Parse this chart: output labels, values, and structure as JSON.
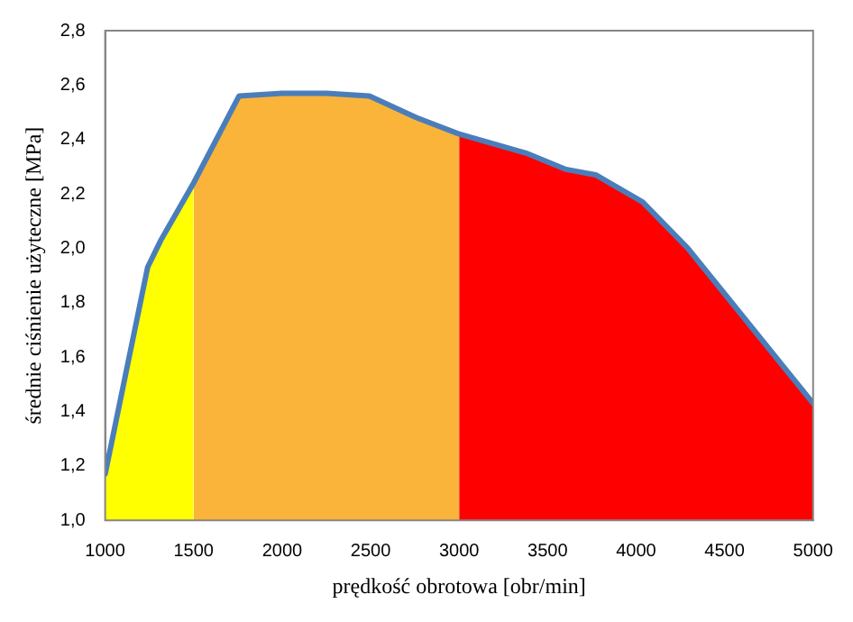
{
  "chart_data": {
    "type": "area",
    "xlabel": "prędkość obrotowa [obr/min]",
    "ylabel": "średnie ciśnienie użyteczne [MPa]",
    "xlim": [
      1000,
      5000
    ],
    "xticks": [
      1000,
      1500,
      2000,
      2500,
      3000,
      3500,
      4000,
      4500,
      5000
    ],
    "ylim": [
      1.0,
      2.8
    ],
    "yticks": [
      {
        "value": 1.0,
        "label": "1,0"
      },
      {
        "value": 1.2,
        "label": "1,2"
      },
      {
        "value": 1.4,
        "label": "1,4"
      },
      {
        "value": 1.6,
        "label": "1,6"
      },
      {
        "value": 1.8,
        "label": "1,8"
      },
      {
        "value": 2.0,
        "label": "2,0"
      },
      {
        "value": 2.2,
        "label": "2,2"
      },
      {
        "value": 2.4,
        "label": "2,4"
      },
      {
        "value": 2.6,
        "label": "2,6"
      },
      {
        "value": 2.8,
        "label": "2,8"
      }
    ],
    "grid": false,
    "legend": false,
    "marker": "none",
    "series": [
      {
        "color": "#ffff00",
        "x": [
          1000,
          1120,
          1240,
          1315,
          1500
        ],
        "values": [
          1.17,
          1.55,
          1.93,
          2.03,
          2.24
        ]
      },
      {
        "color": "#fbb43a",
        "x": [
          1500,
          1757,
          2000,
          2250,
          2493,
          2759,
          3000
        ],
        "values": [
          2.24,
          2.56,
          2.57,
          2.57,
          2.56,
          2.48,
          2.42
        ]
      },
      {
        "color": "#ff0000",
        "x": [
          3000,
          3378,
          3604,
          3771,
          4037,
          4292,
          4528,
          5000
        ],
        "values": [
          2.42,
          2.35,
          2.29,
          2.27,
          2.17,
          2.0,
          1.81,
          1.43
        ]
      },
      {
        "type": "line",
        "color": "#4a7ebb",
        "line_style": "solid",
        "x": [
          1000,
          1120,
          1240,
          1315,
          1500,
          1757,
          2000,
          2250,
          2493,
          2759,
          3000,
          3378,
          3604,
          3771,
          4037,
          4292,
          4528,
          5000
        ],
        "values": [
          1.17,
          1.55,
          1.93,
          2.03,
          2.24,
          2.56,
          2.57,
          2.57,
          2.56,
          2.48,
          2.42,
          2.35,
          2.29,
          2.27,
          2.17,
          2.0,
          1.81,
          1.43
        ]
      }
    ]
  }
}
